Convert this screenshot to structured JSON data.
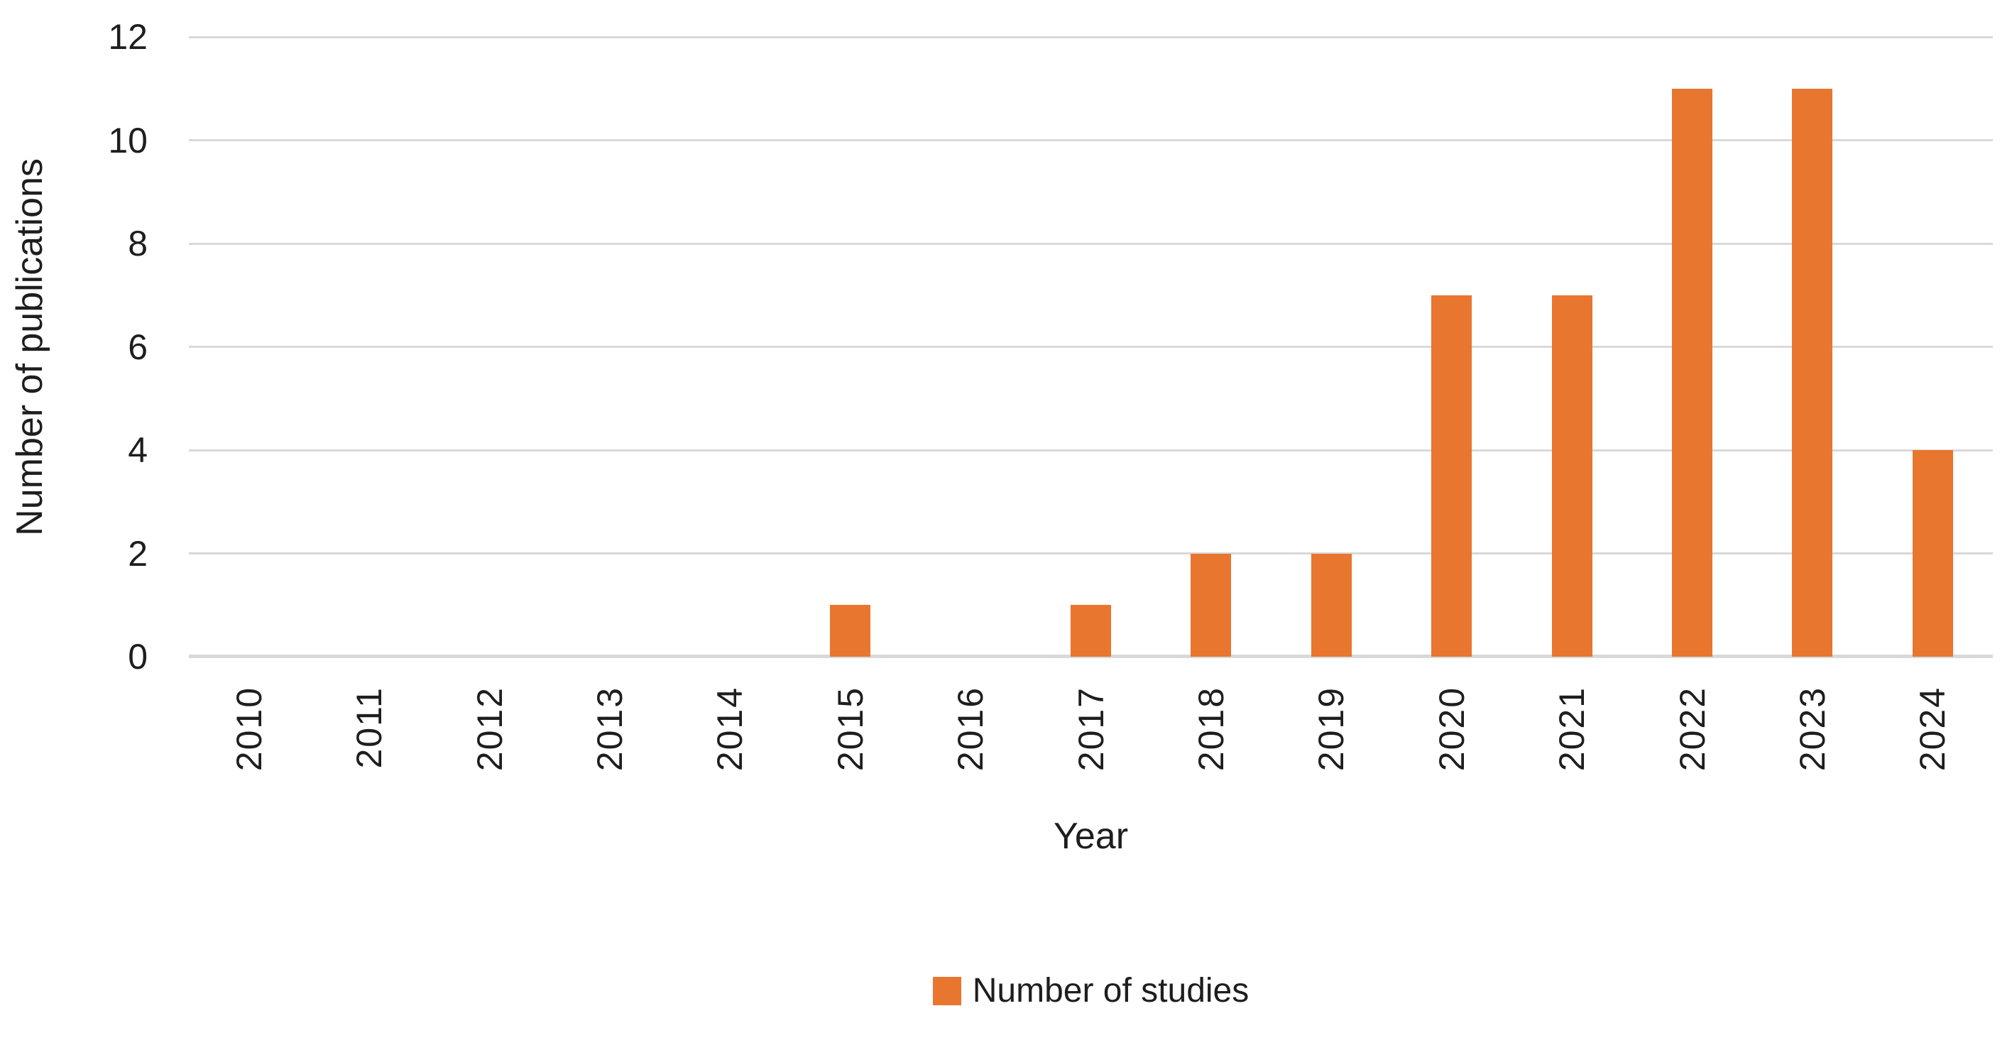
{
  "chart_data": {
    "type": "bar",
    "title": "",
    "categories": [
      "2010",
      "2011",
      "2012",
      "2013",
      "2014",
      "2015",
      "2016",
      "2017",
      "2018",
      "2019",
      "2020",
      "2021",
      "2022",
      "2023",
      "2024"
    ],
    "values": [
      0,
      0,
      0,
      0,
      0,
      1,
      0,
      1,
      2,
      2,
      7,
      7,
      11,
      11,
      4
    ],
    "series": [
      {
        "name": "Number of studies",
        "values": [
          0,
          0,
          0,
          0,
          0,
          1,
          0,
          1,
          2,
          2,
          7,
          7,
          11,
          11,
          4
        ]
      }
    ],
    "xlabel": "Year",
    "ylabel": "Number of publications",
    "ylim": [
      0,
      12
    ],
    "yticks": [
      0,
      2,
      4,
      6,
      8,
      10,
      12
    ],
    "grid": true,
    "legend": [
      "Number of studies"
    ],
    "legend_position": "bottom",
    "bar_color": "#E8762F",
    "gridline_color": "#D9D9D9",
    "axis_line_color": "#D9D9D9",
    "text_color": "#1E1E1E"
  }
}
